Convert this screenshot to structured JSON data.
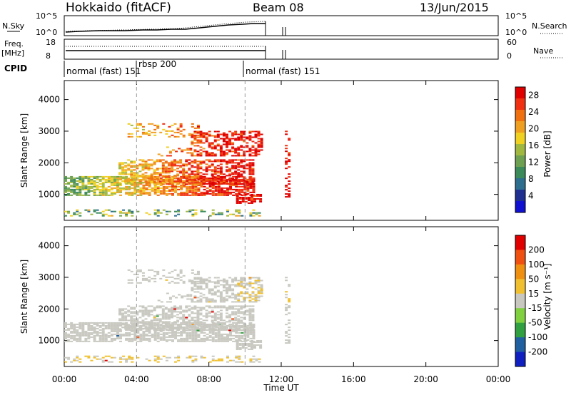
{
  "header": {
    "station": "Hokkaido (fitACF)",
    "beam": "Beam 08",
    "date": "13/Jun/2015"
  },
  "noise_panel": {
    "left_label": "N.Sky",
    "left_ticks": [
      "10^5",
      "10^0"
    ],
    "right_ticks": [
      "10^5",
      "10^0"
    ],
    "right_label": "N.Search"
  },
  "freq_panel": {
    "left_label_1": "Freq.",
    "left_label_2": "[MHz]",
    "left_ticks": [
      "18",
      "8"
    ],
    "right_ticks": [
      "60",
      "0"
    ],
    "right_label": "Nave"
  },
  "cpid": {
    "label": "CPID",
    "segments": [
      {
        "name": "normal (fast) 151",
        "start_hour": 0.0
      },
      {
        "name": "rbsp 200",
        "start_hour": 4.0
      },
      {
        "name": "normal (fast) 151",
        "start_hour": 10.0
      }
    ]
  },
  "chart_data": [
    {
      "type": "heatmap",
      "ylabel": "Slant Range [km]",
      "xlabel": "Time UT",
      "x_ticks": [
        "00:00",
        "04:00",
        "08:00",
        "12:00",
        "16:00",
        "20:00",
        "00:00"
      ],
      "y_ticks": [
        "1000",
        "2000",
        "3000",
        "4000"
      ],
      "ylim": [
        180,
        4600
      ],
      "xlim_hours": [
        0,
        24
      ],
      "colorbar": {
        "label": "Power [dB]",
        "ticks": [
          "4",
          "8",
          "12",
          "16",
          "20",
          "24",
          "28"
        ],
        "range": [
          0,
          30
        ],
        "colors": [
          "#1010d0",
          "#203090",
          "#2d6e8e",
          "#3a8a5a",
          "#6da050",
          "#a0b840",
          "#f0d020",
          "#f0a020",
          "#f07010",
          "#f03010",
          "#e00000"
        ]
      }
    },
    {
      "type": "heatmap",
      "ylabel": "Slant Range [km]",
      "xlabel": "Time UT",
      "x_ticks": [
        "00:00",
        "04:00",
        "08:00",
        "12:00",
        "16:00",
        "20:00",
        "00:00"
      ],
      "y_ticks": [
        "1000",
        "2000",
        "3000",
        "4000"
      ],
      "ylim": [
        180,
        4600
      ],
      "xlim_hours": [
        0,
        24
      ],
      "colorbar": {
        "label": "Velocity [m s⁻¹]",
        "ticks": [
          "200",
          "100",
          "50",
          "15",
          "-15",
          "-50",
          "-100",
          "-200"
        ],
        "colors": [
          "#1020c0",
          "#2060a0",
          "#30a040",
          "#80d040",
          "#c8c8c0",
          "#f0c030",
          "#f09010",
          "#f05010",
          "#e00000"
        ]
      }
    }
  ]
}
